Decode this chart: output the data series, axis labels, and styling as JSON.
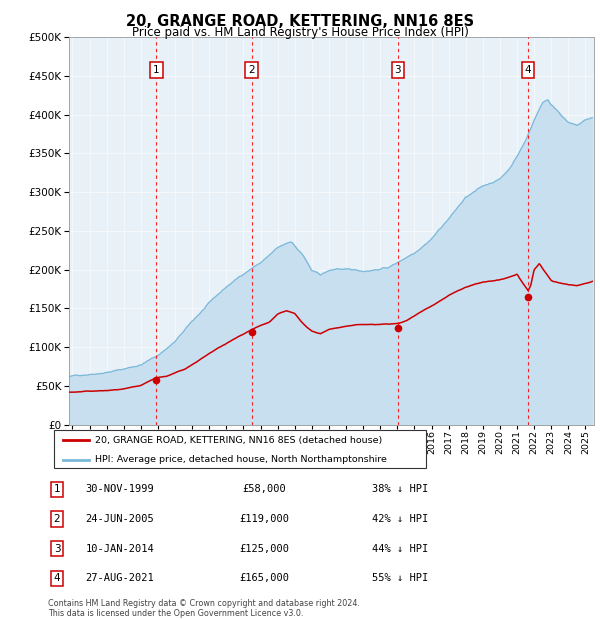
{
  "title": "20, GRANGE ROAD, KETTERING, NN16 8ES",
  "subtitle": "Price paid vs. HM Land Registry's House Price Index (HPI)",
  "legend_label_red": "20, GRANGE ROAD, KETTERING, NN16 8ES (detached house)",
  "legend_label_blue": "HPI: Average price, detached house, North Northamptonshire",
  "footer": "Contains HM Land Registry data © Crown copyright and database right 2024.\nThis data is licensed under the Open Government Licence v3.0.",
  "table_rows": [
    {
      "num": 1,
      "date_str": "30-NOV-1999",
      "price_str": "£58,000",
      "pct_str": "38% ↓ HPI"
    },
    {
      "num": 2,
      "date_str": "24-JUN-2005",
      "price_str": "£119,000",
      "pct_str": "42% ↓ HPI"
    },
    {
      "num": 3,
      "date_str": "10-JAN-2014",
      "price_str": "£125,000",
      "pct_str": "44% ↓ HPI"
    },
    {
      "num": 4,
      "date_str": "27-AUG-2021",
      "price_str": "£165,000",
      "pct_str": "55% ↓ HPI"
    }
  ],
  "vline_x": [
    1999.91,
    2005.48,
    2014.03,
    2021.65
  ],
  "dot_xy": [
    [
      1999.91,
      58000
    ],
    [
      2005.48,
      119000
    ],
    [
      2014.03,
      125000
    ],
    [
      2021.65,
      165000
    ]
  ],
  "label_nums": [
    1,
    2,
    3,
    4
  ],
  "hpi_color": "#7ab8d9",
  "hpi_fill_color": "#c8dff0",
  "price_color": "#cc0000",
  "background_color": "#e8f0f8",
  "ylim": [
    0,
    500000
  ],
  "yticks": [
    0,
    50000,
    100000,
    150000,
    200000,
    250000,
    300000,
    350000,
    400000,
    450000,
    500000
  ],
  "xlim_start": 1994.8,
  "xlim_end": 2025.5
}
